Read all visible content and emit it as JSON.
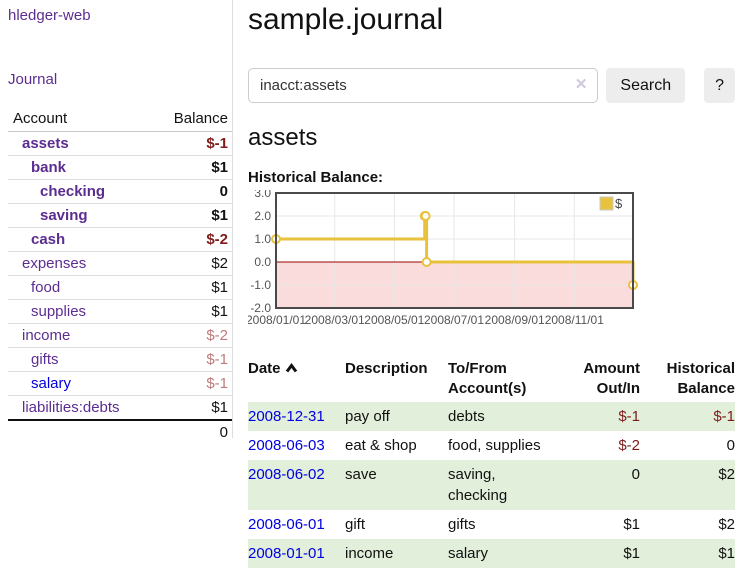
{
  "app": {
    "title": "hledger-web",
    "nav": {
      "journal": "Journal"
    }
  },
  "sidebar": {
    "headers": {
      "account": "Account",
      "balance": "Balance"
    },
    "accounts": [
      {
        "name": "assets",
        "balance": "$-1",
        "indent": 1,
        "bold": true,
        "neg": "strong"
      },
      {
        "name": "bank",
        "balance": "$1",
        "indent": 2,
        "bold": true,
        "neg": "none"
      },
      {
        "name": "checking",
        "balance": "0",
        "indent": 3,
        "bold": true,
        "neg": "none"
      },
      {
        "name": "saving",
        "balance": "$1",
        "indent": 3,
        "bold": true,
        "neg": "none"
      },
      {
        "name": "cash",
        "balance": "$-2",
        "indent": 2,
        "bold": true,
        "neg": "strong"
      },
      {
        "name": "expenses",
        "balance": "$2",
        "indent": 1,
        "bold": false,
        "neg": "none"
      },
      {
        "name": "food",
        "balance": "$1",
        "indent": 2,
        "bold": false,
        "neg": "none"
      },
      {
        "name": "supplies",
        "balance": "$1",
        "indent": 2,
        "bold": false,
        "neg": "none"
      },
      {
        "name": "income",
        "balance": "$-2",
        "indent": 1,
        "bold": false,
        "neg": "soft"
      },
      {
        "name": "gifts",
        "balance": "$-1",
        "indent": 2,
        "bold": false,
        "neg": "soft"
      },
      {
        "name": "salary",
        "balance": "$-1",
        "indent": 2,
        "bold": false,
        "neg": "soft",
        "blue": true
      },
      {
        "name": "liabilities:debts",
        "balance": "$1",
        "indent": 1,
        "bold": false,
        "neg": "none"
      }
    ],
    "total": "0"
  },
  "header": {
    "title": "sample.journal"
  },
  "search": {
    "value": "inacct:assets",
    "clear_icon": "✕",
    "button_label": "Search",
    "help_label": "?"
  },
  "account_page": {
    "title": "assets",
    "chart_label": "Historical Balance:"
  },
  "chart_data": {
    "type": "line",
    "step": true,
    "title": "Historical Balance:",
    "series": [
      {
        "name": "$",
        "color": "#e9c23d",
        "points": [
          [
            "2008-01-01",
            1
          ],
          [
            "2008-06-01",
            2
          ],
          [
            "2008-06-02",
            2
          ],
          [
            "2008-06-03",
            0
          ],
          [
            "2008-12-31",
            -1
          ]
        ]
      }
    ],
    "xlim": [
      "2008-01-01",
      "2008-12-31"
    ],
    "ylim": [
      -2,
      3
    ],
    "yticks": [
      {
        "v": 3,
        "label": "3.0"
      },
      {
        "v": 2,
        "label": "2.0"
      },
      {
        "v": 1,
        "label": "1.0"
      },
      {
        "v": 0,
        "label": "0.0"
      },
      {
        "v": -1,
        "label": "-1.0"
      },
      {
        "v": -2,
        "label": "-2.0"
      }
    ],
    "xticks": [
      {
        "date": "2008-01-01",
        "label": "2008/01/01"
      },
      {
        "date": "2008-03-01",
        "label": "2008/03/01"
      },
      {
        "date": "2008-05-01",
        "label": "2008/05/01"
      },
      {
        "date": "2008-07-01",
        "label": "2008/07/01"
      },
      {
        "date": "2008-09-01",
        "label": "2008/09/01"
      },
      {
        "date": "2008-11-01",
        "label": "2008/11/01"
      }
    ],
    "grid": true,
    "legend_position": "top-right",
    "negative_region_fill": "#fbdcdc",
    "zero_line_color": "#990000",
    "plot_border_color": "#4a4a4a",
    "grid_color": "#e7e7e7"
  },
  "register": {
    "headers": {
      "date": "Date",
      "description": "Description",
      "accounts": "To/From Account(s)",
      "amount": "Amount Out/In",
      "balance": "Historical Balance"
    },
    "rows": [
      {
        "date": "2008-12-31",
        "description": "pay off",
        "accounts": "debts",
        "amount": "$-1",
        "amount_negative": true,
        "balance": "$-1",
        "balance_negative": true
      },
      {
        "date": "2008-06-03",
        "description": "eat & shop",
        "accounts": "food, supplies",
        "amount": "$-2",
        "amount_negative": true,
        "balance": "0",
        "balance_negative": false
      },
      {
        "date": "2008-06-02",
        "description": "save",
        "accounts": "saving, checking",
        "amount": "0",
        "amount_negative": false,
        "balance": "$2",
        "balance_negative": false
      },
      {
        "date": "2008-06-01",
        "description": "gift",
        "accounts": "gifts",
        "amount": "$1",
        "amount_negative": false,
        "balance": "$2",
        "balance_negative": false
      },
      {
        "date": "2008-01-01",
        "description": "income",
        "accounts": "salary",
        "amount": "$1",
        "amount_negative": false,
        "balance": "$1",
        "balance_negative": false
      }
    ]
  }
}
